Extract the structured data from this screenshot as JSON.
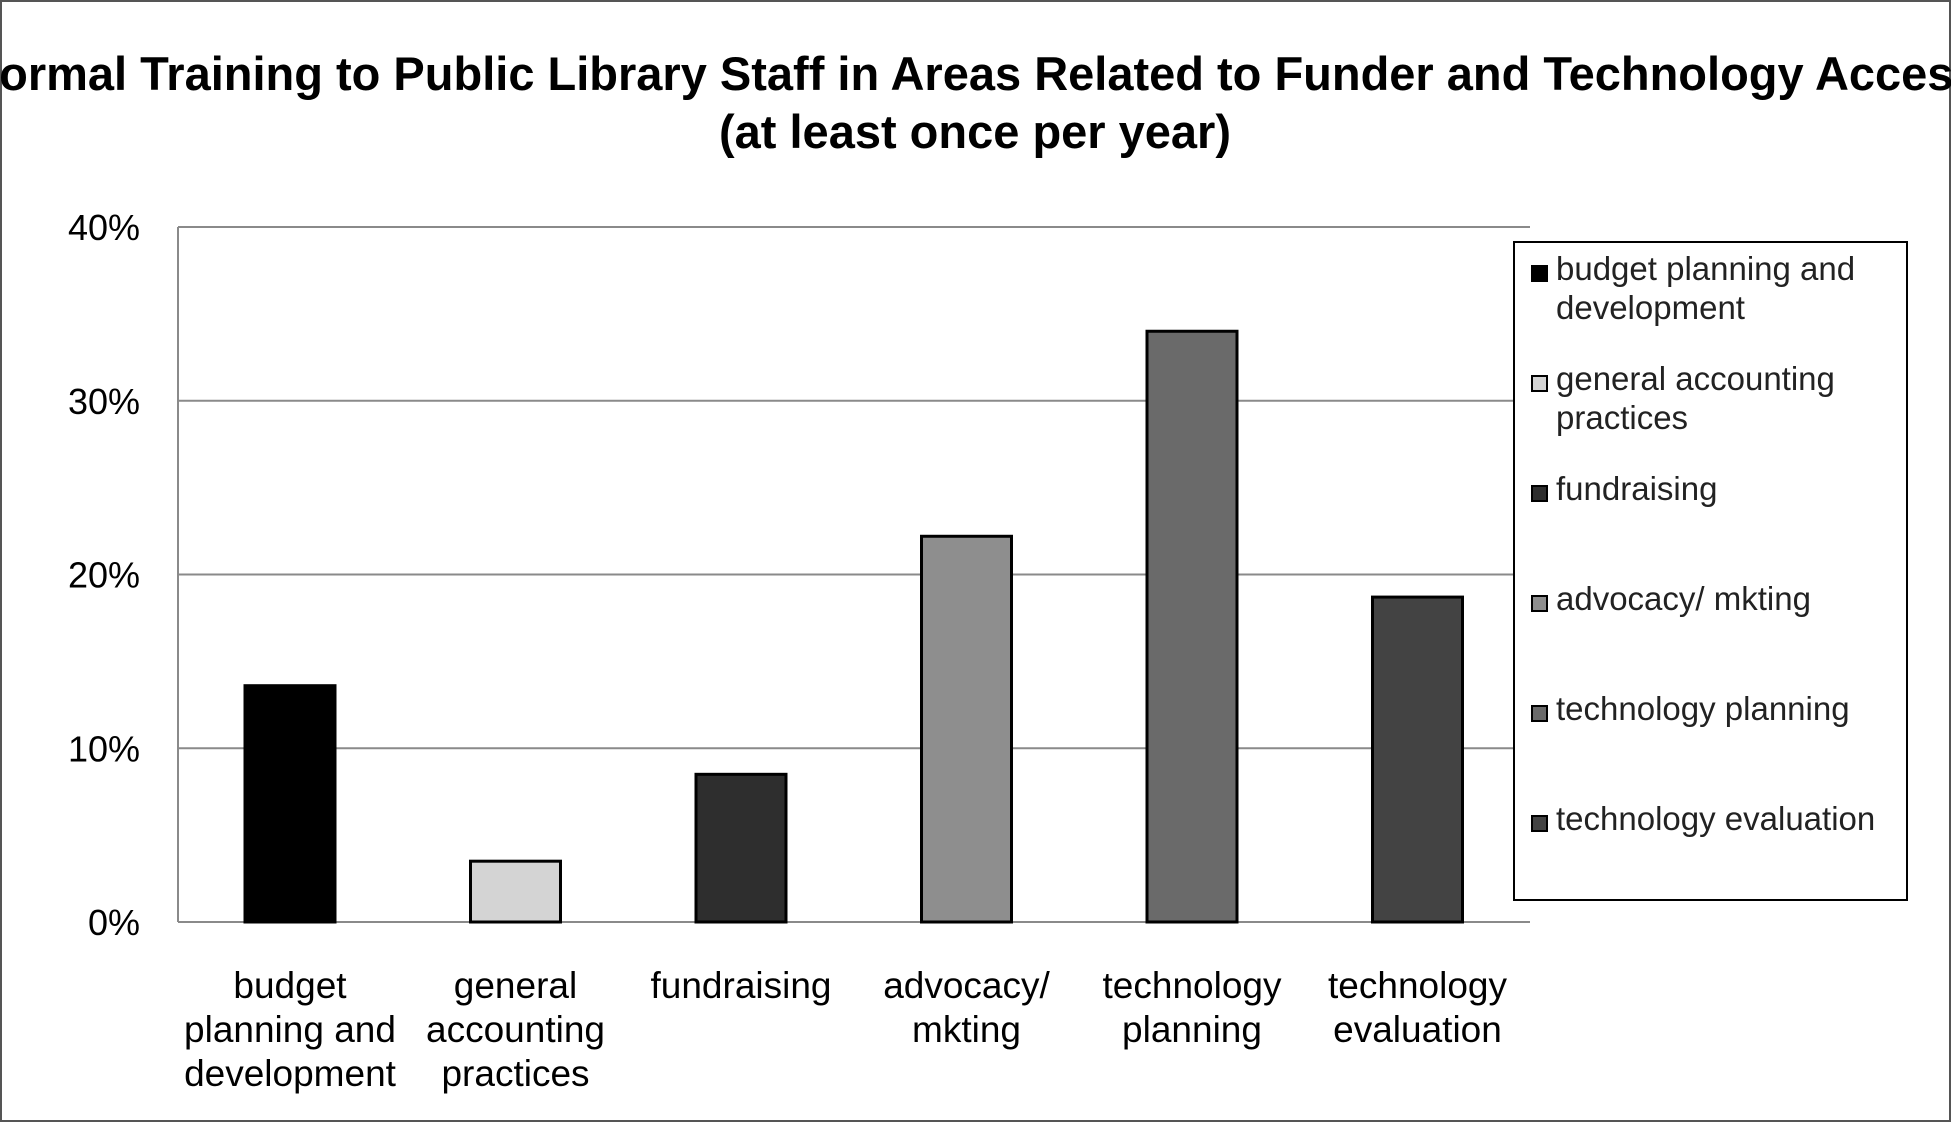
{
  "chart_data": {
    "type": "bar",
    "title": "Formal Training to Public Library Staff in Areas Related to Funder and Technology Access",
    "subtitle": "(at least once per year)",
    "xlabel": "",
    "ylabel": "",
    "ylim": [
      0,
      40
    ],
    "yticks": [
      "0%",
      "10%",
      "20%",
      "30%",
      "40%"
    ],
    "grid": true,
    "legend_position": "right",
    "categories": [
      "budget planning and development",
      "general accounting practices",
      "fundraising",
      "advocacy/ mkting",
      "technology planning",
      "technology evaluation"
    ],
    "category_lines": [
      [
        "budget",
        "planning and",
        "development"
      ],
      [
        "general",
        "accounting",
        "practices"
      ],
      [
        "fundraising"
      ],
      [
        "advocacy/",
        "mkting"
      ],
      [
        "technology",
        "planning"
      ],
      [
        "technology",
        "evaluation"
      ]
    ],
    "values": [
      13.6,
      3.5,
      8.5,
      22.2,
      34.0,
      18.7
    ],
    "colors": [
      "#000000",
      "#d4d4d4",
      "#2e2e2e",
      "#8e8e8e",
      "#6a6a6a",
      "#434343"
    ],
    "legend": [
      [
        "budget planning and",
        "development"
      ],
      [
        "general accounting",
        "practices"
      ],
      [
        "fundraising"
      ],
      [
        "advocacy/ mkting"
      ],
      [
        "technology planning"
      ],
      [
        "technology evaluation"
      ]
    ]
  }
}
